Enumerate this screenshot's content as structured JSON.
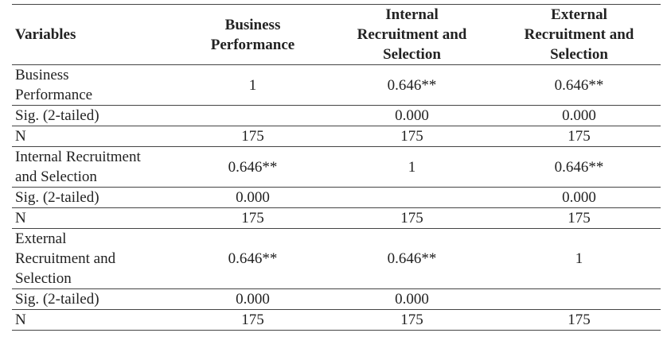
{
  "table": {
    "header": [
      "Variables",
      "Business Performance",
      "Internal Recruitment and Selection",
      "External Recruitment and Selection"
    ],
    "rows": [
      [
        "Business Performance",
        "1",
        "0.646**",
        "0.646**"
      ],
      [
        "Sig. (2-tailed)",
        null,
        "0.000",
        "0.000"
      ],
      [
        "N",
        "175",
        "175",
        "175"
      ],
      [
        "Internal Recruitment and Selection",
        "0.646**",
        "1",
        "0.646**"
      ],
      [
        "Sig. (2-tailed)",
        "0.000",
        null,
        "0.000"
      ],
      [
        "N",
        "175",
        "175",
        "175"
      ],
      [
        "External Recruitment and Selection",
        "0.646**",
        "0.646**",
        "1"
      ],
      [
        "Sig. (2-tailed)",
        "0.000",
        "0.000",
        null
      ],
      [
        "N",
        "175",
        "175",
        "175"
      ]
    ]
  }
}
